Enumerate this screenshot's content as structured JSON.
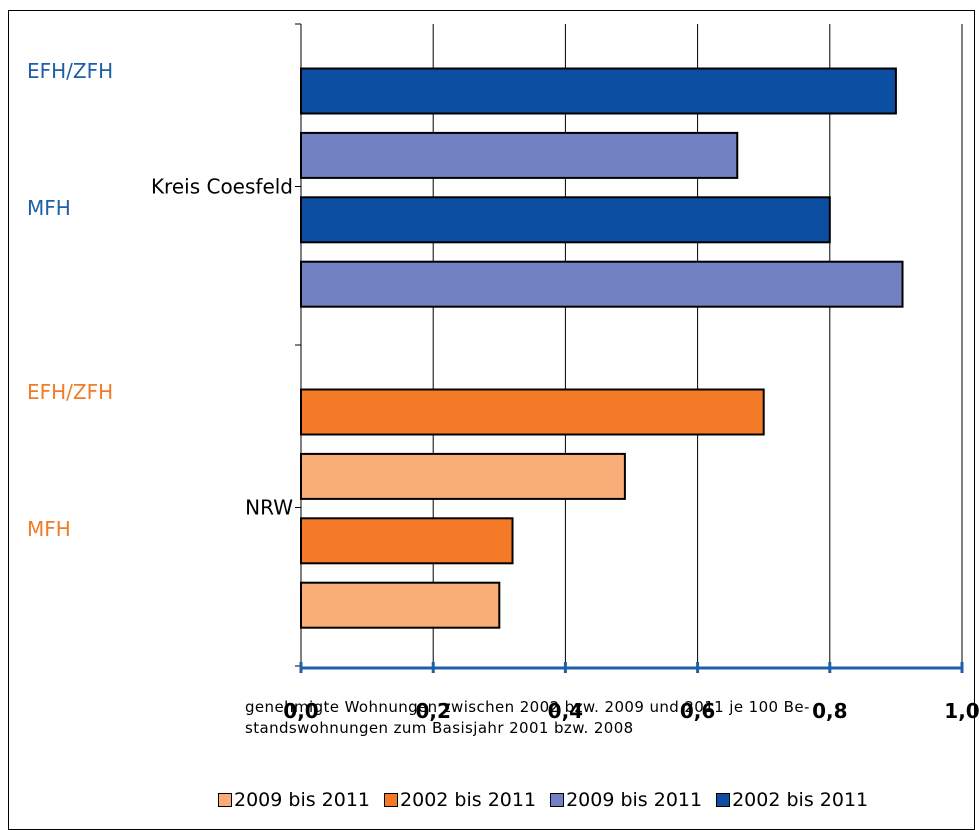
{
  "chart_data": {
    "type": "bar",
    "orientation": "horizontal",
    "groups": [
      {
        "label": "Kreis Coesfeld",
        "subgroups": [
          {
            "label": "EFH/ZFH",
            "label_color": "#1f5fa8",
            "bars": [
              {
                "series": "2002 bis 2011",
                "value": 0.9
              },
              {
                "series": "2009 bis 2011",
                "value": 0.66
              }
            ]
          },
          {
            "label": "MFH",
            "label_color": "#1f5fa8",
            "bars": [
              {
                "series": "2002 bis 2011",
                "value": 0.8
              },
              {
                "series": "2009 bis 2011",
                "value": 0.91
              }
            ]
          }
        ]
      },
      {
        "label": "NRW",
        "subgroups": [
          {
            "label": "EFH/ZFH",
            "label_color": "#f07c28",
            "bars": [
              {
                "series": "2002 bis 2011",
                "value": 0.7
              },
              {
                "series": "2009 bis 2011",
                "value": 0.49
              }
            ]
          },
          {
            "label": "MFH",
            "label_color": "#f07c28",
            "bars": [
              {
                "series": "2002 bis 2011",
                "value": 0.32
              },
              {
                "series": "2009 bis 2011",
                "value": 0.3
              }
            ]
          }
        ]
      }
    ],
    "bar_colors": {
      "Kreis Coesfeld": {
        "2002 bis 2011": "#0b4ea2",
        "2009 bis 2011": "#7281c1"
      },
      "NRW": {
        "2002 bis 2011": "#f47a28",
        "2009 bis 2011": "#f9ad77"
      }
    },
    "xlim": [
      0,
      1.0
    ],
    "xticks": [
      "0,0",
      "0,2",
      "0,4",
      "0,6",
      "0,8",
      "1,0"
    ],
    "xlabel": "genehmigte Wohnungen zwischen 2002 bzw. 2009 und 2011 je 100 Be-standswohnungen zum Basisjahr 2001 bzw. 2008",
    "xlabel_lines": [
      "genehmigte Wohnungen zwischen 2002 bzw. 2009 und 2011 je 100 Be-",
      "standswohnungen zum Basisjahr 2001 bzw. 2008"
    ],
    "grid": "vertical",
    "legend": [
      {
        "label": "2009 bis 2011",
        "color": "#f9ad77"
      },
      {
        "label": "2002 bis 2011",
        "color": "#f47a28"
      },
      {
        "label": "2009 bis 2011",
        "color": "#7281c1"
      },
      {
        "label": "2002 bis 2011",
        "color": "#0b4ea2"
      }
    ],
    "legend_position": "bottom",
    "axis_color": "#1f5fa8"
  }
}
